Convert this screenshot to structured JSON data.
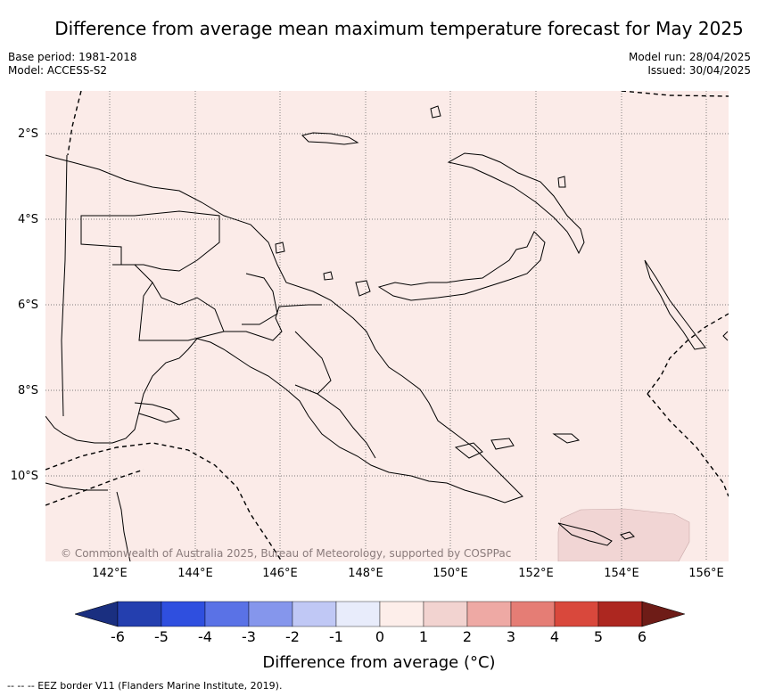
{
  "title": "Difference from average mean maximum temperature forecast for May 2025",
  "meta": {
    "base_period": "Base period: 1981-2018",
    "model": "Model: ACCESS-S2",
    "model_run": "Model run: 28/04/2025",
    "issued": "Issued: 30/04/2025"
  },
  "map": {
    "lat_labels": [
      "2°S",
      "4°S",
      "6°S",
      "8°S",
      "10°S"
    ],
    "lon_labels": [
      "142°E",
      "144°E",
      "146°E",
      "148°E",
      "150°E",
      "152°E",
      "154°E",
      "156°E"
    ],
    "copyright": "© Commonwealth of Australia 2025, Bureau of Meteorology, supported by COSPPac",
    "base_color": "#fbebe8",
    "anomaly_patch_color": "#f1d5d4"
  },
  "colorbar": {
    "ticks": [
      "-6",
      "-5",
      "-4",
      "-3",
      "-2",
      "-1",
      "0",
      "1",
      "2",
      "3",
      "4",
      "5",
      "6"
    ],
    "colors": [
      "#243faf",
      "#2f4fdf",
      "#5a72e6",
      "#8596ec",
      "#c0c8f5",
      "#e8ecfb",
      "#fdeeea",
      "#f2d3d0",
      "#eea9a4",
      "#e57d75",
      "#d9483c",
      "#ad2720"
    ],
    "low_extend_color": "#1a2f80",
    "high_extend_color": "#6e1c17",
    "label": "Difference from average (°C)"
  },
  "legend_note": "-- -- -- EEZ border V11 (Flanders Marine Institute, 2019)."
}
